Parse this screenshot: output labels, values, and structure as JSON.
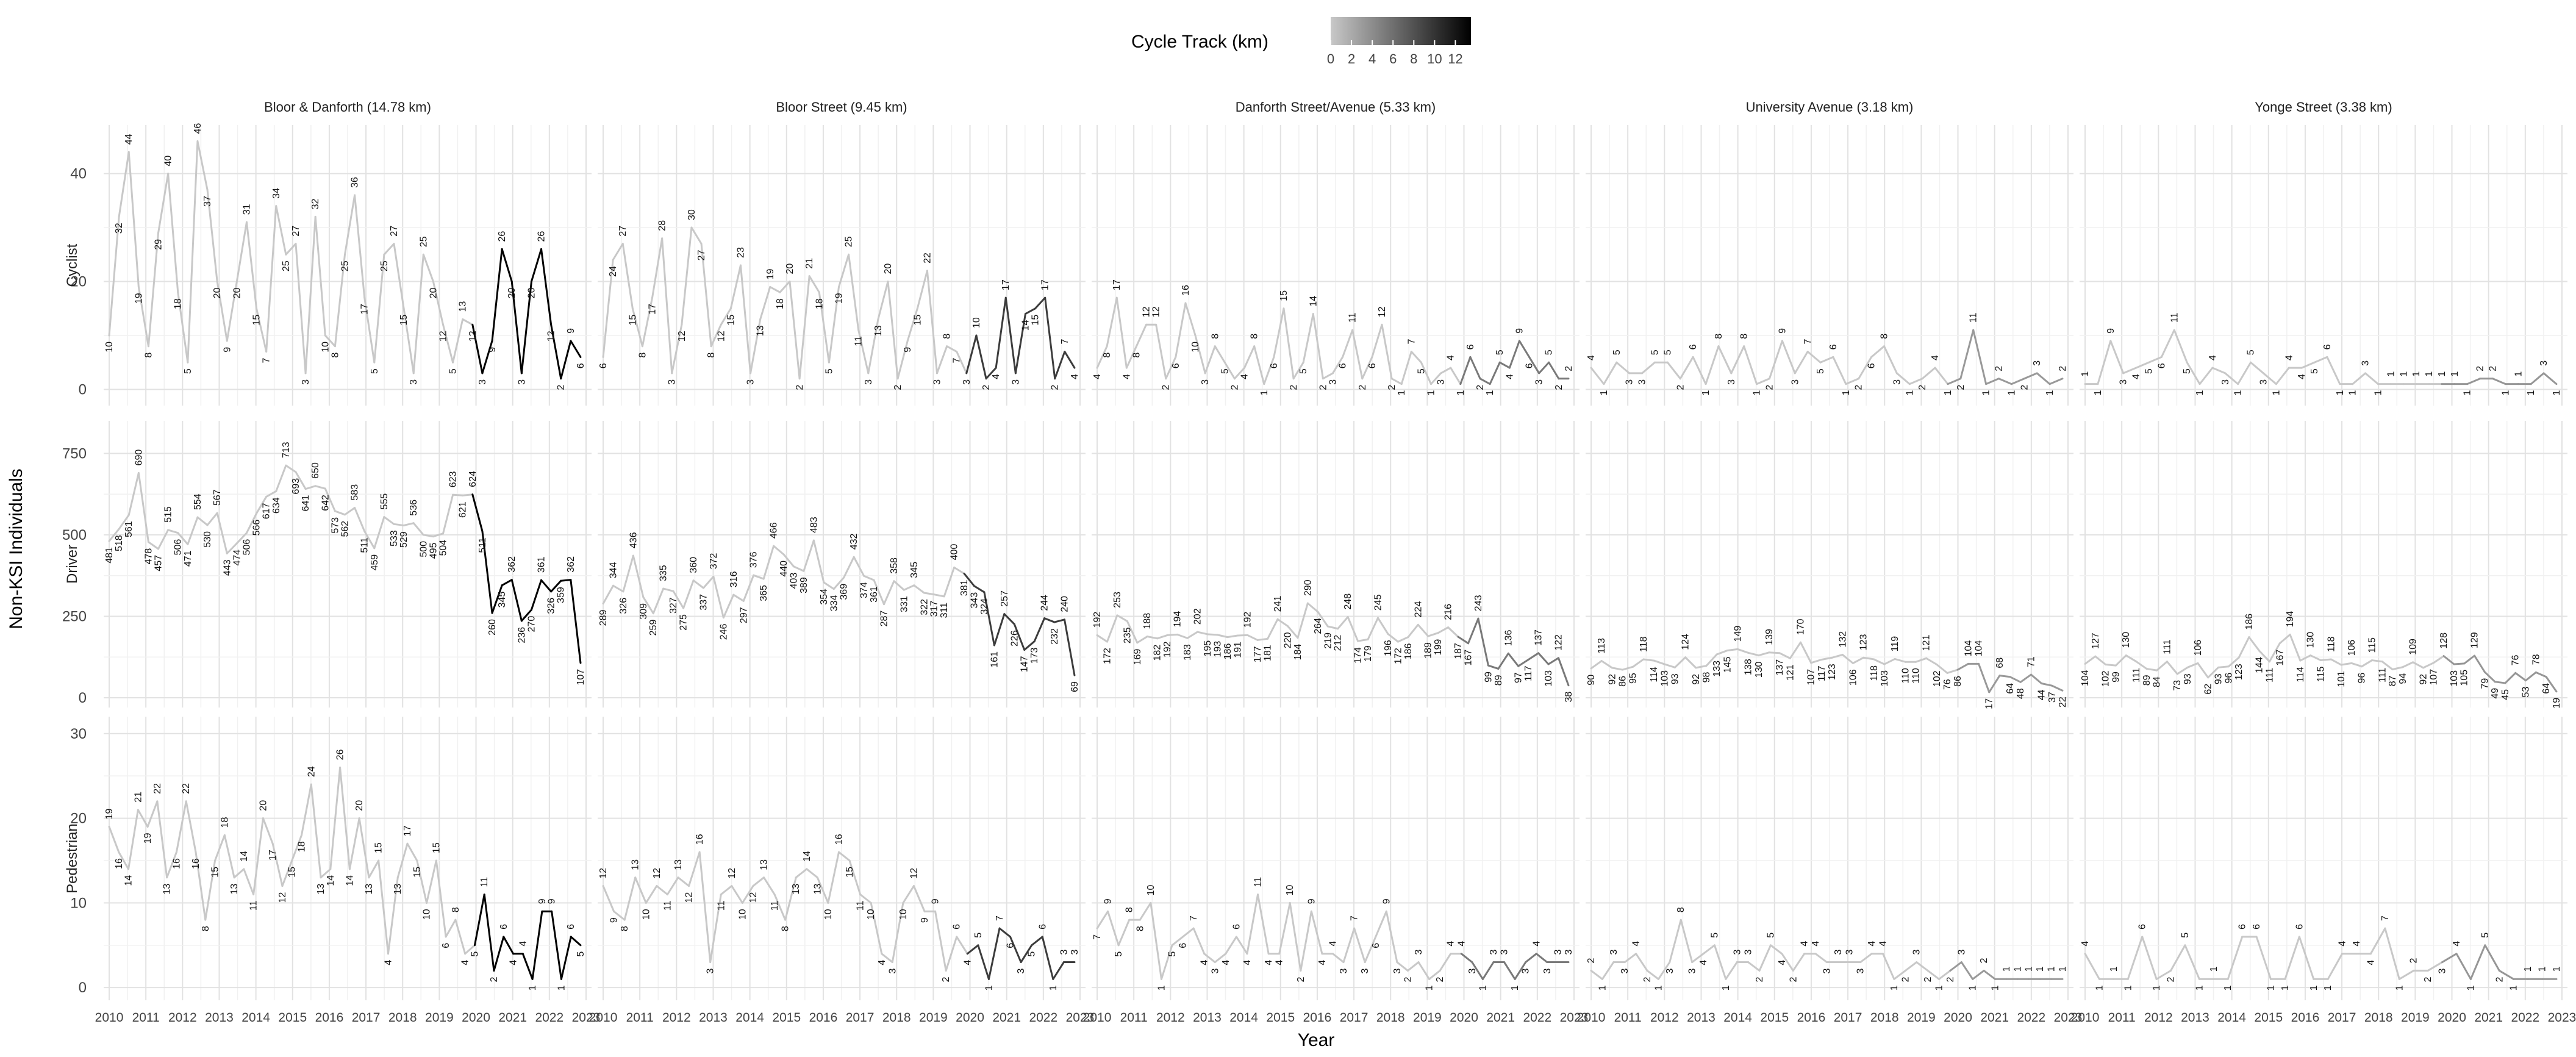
{
  "chart_data": {
    "type": "line",
    "legend": {
      "title": "Cycle Track (km)",
      "ticks": [
        "0",
        "2",
        "4",
        "6",
        "8",
        "10",
        "12"
      ],
      "min": 0,
      "max": 13.5,
      "placement": "top-center"
    },
    "xlabel": "Year",
    "ylabel": "Non-KSI Individuals",
    "x_ticks": [
      "2010",
      "2011",
      "2012",
      "2013",
      "2014",
      "2015",
      "2016",
      "2017",
      "2018",
      "2019",
      "2020",
      "2021",
      "2022",
      "2023"
    ],
    "x_range": [
      2009.85,
      2023.15
    ],
    "grid": true,
    "rows": [
      {
        "name": "Cyclist",
        "ylim": [
          -3,
          49
        ],
        "yticks": [
          0,
          20,
          40
        ]
      },
      {
        "name": "Driver",
        "ylim": [
          -30,
          850
        ],
        "yticks": [
          0,
          250,
          500,
          750
        ]
      },
      {
        "name": "Pedestrian",
        "ylim": [
          -1.5,
          32
        ],
        "yticks": [
          0,
          10,
          20,
          30
        ]
      }
    ],
    "panels": [
      {
        "title": "Bloor & Danforth (14.78 km)",
        "cycle_track_after": 14.78,
        "series": [
          {
            "name": "Cyclist",
            "values": [
              10,
              32,
              44,
              19,
              8,
              29,
              40,
              18,
              5,
              46,
              37,
              20,
              9,
              20,
              31,
              15,
              7,
              34,
              25,
              27,
              3,
              32,
              10,
              8,
              25,
              36,
              17,
              5,
              25,
              27,
              15,
              3,
              25,
              20,
              12,
              5,
              13,
              12,
              3,
              9,
              26,
              20,
              3,
              20,
              26,
              12,
              2,
              9,
              6
            ]
          },
          {
            "name": "Driver",
            "values": [
              481,
              518,
              561,
              690,
              478,
              457,
              515,
              506,
              471,
              554,
              530,
              567,
              443,
              474,
              506,
              566,
              617,
              634,
              713,
              693,
              641,
              650,
              642,
              573,
              562,
              583,
              511,
              459,
              555,
              533,
              529,
              536,
              500,
              495,
              504,
              623,
              621,
              624,
              511,
              260,
              345,
              362,
              236,
              270,
              361,
              326,
              359,
              362,
              107
            ]
          },
          {
            "name": "Pedestrian",
            "values": [
              19,
              16,
              14,
              21,
              19,
              22,
              13,
              16,
              22,
              16,
              8,
              15,
              18,
              13,
              14,
              11,
              20,
              17,
              12,
              15,
              18,
              24,
              13,
              14,
              26,
              14,
              20,
              13,
              15,
              4,
              13,
              17,
              15,
              10,
              15,
              6,
              8,
              4,
              5,
              11,
              2,
              6,
              4,
              4,
              1,
              9,
              9,
              1,
              6,
              5
            ]
          }
        ]
      },
      {
        "title": "Bloor Street (9.45 km)",
        "cycle_track_after": 9.45,
        "series": [
          {
            "name": "Cyclist",
            "values": [
              6,
              24,
              27,
              15,
              8,
              17,
              28,
              3,
              12,
              30,
              27,
              8,
              12,
              15,
              23,
              3,
              13,
              19,
              18,
              20,
              2,
              21,
              18,
              5,
              19,
              25,
              11,
              3,
              13,
              20,
              2,
              9,
              15,
              22,
              3,
              8,
              7,
              3,
              10,
              2,
              4,
              17,
              3,
              14,
              15,
              17,
              2,
              7,
              4
            ]
          },
          {
            "name": "Driver",
            "values": [
              289,
              344,
              326,
              436,
              309,
              259,
              335,
              327,
              275,
              360,
              337,
              372,
              246,
              316,
              297,
              376,
              365,
              466,
              440,
              403,
              389,
              483,
              354,
              334,
              369,
              432,
              374,
              361,
              287,
              358,
              331,
              345,
              322,
              317,
              311,
              400,
              381,
              343,
              324,
              161,
              257,
              226,
              147,
              173,
              244,
              232,
              240,
              69
            ]
          },
          {
            "name": "Pedestrian",
            "values": [
              12,
              9,
              8,
              13,
              10,
              12,
              11,
              13,
              12,
              16,
              3,
              11,
              12,
              10,
              12,
              13,
              11,
              8,
              13,
              14,
              13,
              10,
              16,
              15,
              11,
              10,
              4,
              3,
              10,
              12,
              9,
              9,
              2,
              6,
              4,
              5,
              1,
              7,
              6,
              3,
              5,
              6,
              1,
              3,
              3
            ]
          }
        ]
      },
      {
        "title": "Danforth Street/Avenue (5.33 km)",
        "cycle_track_after": 5.33,
        "series": [
          {
            "name": "Cyclist",
            "values": [
              4,
              8,
              17,
              4,
              8,
              12,
              12,
              2,
              6,
              16,
              10,
              3,
              8,
              5,
              2,
              4,
              8,
              1,
              6,
              15,
              2,
              5,
              14,
              2,
              3,
              6,
              11,
              2,
              6,
              12,
              2,
              1,
              7,
              5,
              1,
              3,
              4,
              1,
              6,
              2,
              1,
              5,
              4,
              9,
              6,
              3,
              5,
              2,
              2
            ]
          },
          {
            "name": "Driver",
            "values": [
              192,
              172,
              253,
              235,
              169,
              188,
              182,
              192,
              194,
              183,
              202,
              195,
              193,
              186,
              191,
              192,
              177,
              181,
              241,
              220,
              184,
              290,
              264,
              219,
              212,
              248,
              174,
              179,
              245,
              196,
              172,
              186,
              224,
              189,
              199,
              216,
              187,
              167,
              243,
              99,
              89,
              136,
              97,
              117,
              137,
              103,
              122,
              38
            ]
          },
          {
            "name": "Pedestrian",
            "values": [
              7,
              9,
              5,
              8,
              8,
              10,
              1,
              5,
              6,
              7,
              4,
              3,
              4,
              6,
              4,
              11,
              4,
              4,
              10,
              2,
              9,
              4,
              4,
              3,
              7,
              3,
              6,
              9,
              3,
              2,
              3,
              1,
              2,
              4,
              4,
              3,
              1,
              3,
              3,
              1,
              3,
              4,
              3,
              3,
              3
            ]
          }
        ]
      },
      {
        "title": "University Avenue (3.18 km)",
        "cycle_track_after": 3.18,
        "series": [
          {
            "name": "Cyclist",
            "values": [
              4,
              1,
              5,
              3,
              3,
              5,
              5,
              2,
              6,
              1,
              8,
              3,
              8,
              1,
              2,
              9,
              3,
              7,
              5,
              6,
              1,
              2,
              6,
              8,
              3,
              1,
              2,
              4,
              1,
              2,
              11,
              1,
              2,
              1,
              2,
              3,
              1,
              2
            ]
          },
          {
            "name": "Driver",
            "values": [
              90,
              113,
              92,
              86,
              95,
              118,
              114,
              103,
              93,
              124,
              92,
              98,
              133,
              145,
              149,
              138,
              130,
              139,
              137,
              121,
              170,
              107,
              117,
              123,
              132,
              106,
              123,
              118,
              103,
              119,
              110,
              110,
              121,
              102,
              76,
              86,
              104,
              104,
              17,
              68,
              64,
              48,
              71,
              44,
              37,
              22
            ]
          },
          {
            "name": "Pedestrian",
            "values": [
              2,
              1,
              3,
              3,
              4,
              2,
              1,
              3,
              8,
              3,
              4,
              5,
              1,
              3,
              3,
              2,
              5,
              4,
              2,
              4,
              4,
              3,
              3,
              3,
              3,
              4,
              4,
              1,
              2,
              3,
              2,
              1,
              2,
              3,
              1,
              2,
              1,
              1,
              1,
              1,
              1,
              1,
              1
            ]
          }
        ]
      },
      {
        "title": "Yonge Street (3.38 km)",
        "cycle_track_after": 3.38,
        "series": [
          {
            "name": "Cyclist",
            "values": [
              1,
              1,
              9,
              3,
              4,
              5,
              6,
              11,
              5,
              1,
              4,
              3,
              1,
              5,
              3,
              1,
              4,
              4,
              5,
              6,
              1,
              1,
              3,
              1,
              1,
              1,
              1,
              1,
              1,
              1,
              1,
              2,
              2,
              1,
              1,
              1,
              3,
              1
            ]
          },
          {
            "name": "Driver",
            "values": [
              104,
              127,
              102,
              99,
              130,
              111,
              89,
              84,
              111,
              73,
              93,
              106,
              62,
              93,
              96,
              123,
              186,
              144,
              111,
              167,
              194,
              114,
              130,
              115,
              118,
              101,
              106,
              96,
              115,
              111,
              87,
              94,
              109,
              92,
              107,
              128,
              103,
              105,
              129,
              79,
              49,
              45,
              76,
              53,
              78,
              64,
              19
            ]
          },
          {
            "name": "Pedestrian",
            "values": [
              4,
              1,
              1,
              1,
              6,
              1,
              2,
              5,
              1,
              1,
              1,
              6,
              6,
              1,
              1,
              6,
              1,
              1,
              4,
              4,
              4,
              7,
              1,
              2,
              2,
              3,
              4,
              1,
              5,
              2,
              1,
              1,
              1,
              1
            ]
          }
        ]
      }
    ]
  }
}
